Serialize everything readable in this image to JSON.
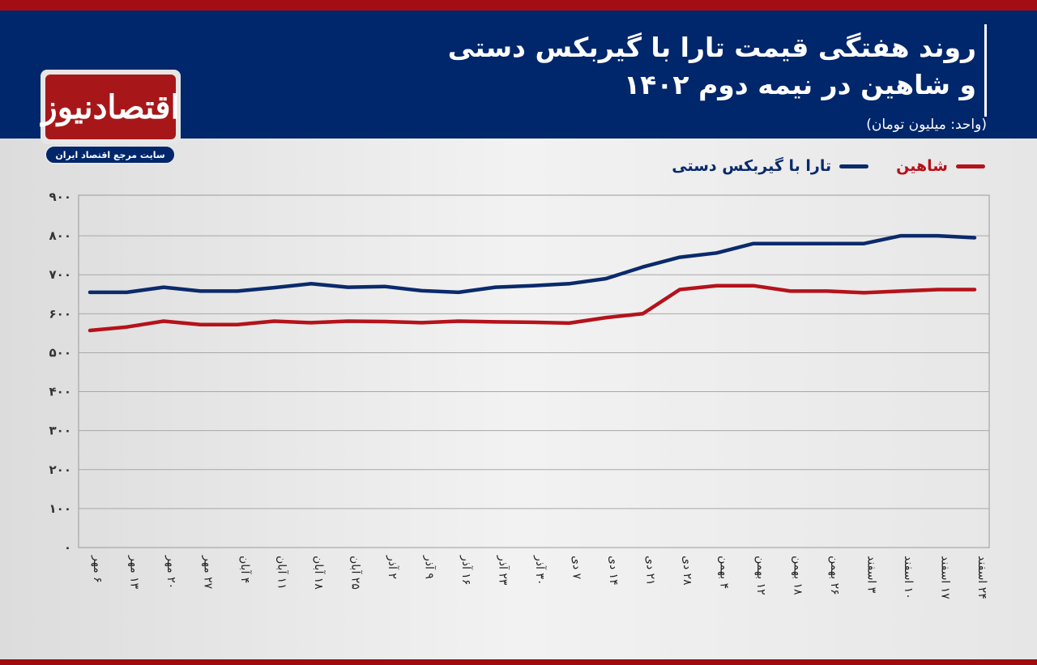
{
  "header": {
    "title_line1": "روند هفتگی قیمت تارا با گیربکس دستی",
    "title_line2": "و شاهین در نیمه دوم ۱۴۰۲",
    "unit": "(واحد: میلیون تومان)",
    "colors": {
      "top_bar": "#a30d14",
      "header_bg": "#00266b",
      "bottom_bar": "#9e0c10"
    }
  },
  "logo": {
    "name": "اقتصادنیوز",
    "tagline": "سایت مرجع اقتصاد ایران"
  },
  "legend": [
    {
      "label": "شاهین",
      "color": "#b5121b"
    },
    {
      "label": "تارا با گیربکس دستی",
      "color": "#0a2a6b"
    }
  ],
  "chart_data": {
    "type": "line",
    "title": "روند هفتگی قیمت تارا با گیربکس دستی و شاهین در نیمه دوم ۱۴۰۲",
    "subtitle": "(واحد: میلیون تومان)",
    "xlabel": "",
    "ylabel": "میلیون تومان",
    "ylim": [
      0,
      900
    ],
    "yticks": [
      0,
      100,
      200,
      300,
      400,
      500,
      600,
      700,
      800,
      900
    ],
    "ytick_labels": [
      "۰",
      "۱۰۰",
      "۲۰۰",
      "۳۰۰",
      "۴۰۰",
      "۵۰۰",
      "۶۰۰",
      "۷۰۰",
      "۸۰۰",
      "۹۰۰"
    ],
    "grid": true,
    "legend_position": "top-right",
    "categories": [
      "۶ مهر",
      "۱۳ مهر",
      "۲۰ مهر",
      "۲۷ مهر",
      "۴ آبان",
      "۱۱ آبان",
      "۱۸ آبان",
      "۲۵ آبان",
      "۲ آذر",
      "۹ آذر",
      "۱۶ آذر",
      "۲۳ آذر",
      "۳۰ آذر",
      "۷ دی",
      "۱۴ دی",
      "۲۱ دی",
      "۲۸ دی",
      "۴ بهمن",
      "۱۲ بهمن",
      "۱۸ بهمن",
      "۲۶ بهمن",
      "۳ اسفند",
      "۱۰ اسفند",
      "۱۷ اسفند",
      "۲۴ اسفند"
    ],
    "series": [
      {
        "name": "تارا با گیربکس دستی",
        "color": "#0a2a6b",
        "values": [
          655,
          655,
          668,
          658,
          658,
          667,
          677,
          668,
          670,
          659,
          655,
          668,
          672,
          677,
          690,
          720,
          745,
          756,
          780,
          780,
          780,
          780,
          800,
          800,
          795
        ]
      },
      {
        "name": "شاهین",
        "color": "#b5121b",
        "values": [
          557,
          566,
          581,
          572,
          572,
          581,
          577,
          581,
          580,
          577,
          581,
          579,
          578,
          576,
          590,
          600,
          662,
          672,
          672,
          658,
          658,
          654,
          658,
          662,
          662
        ]
      }
    ]
  }
}
